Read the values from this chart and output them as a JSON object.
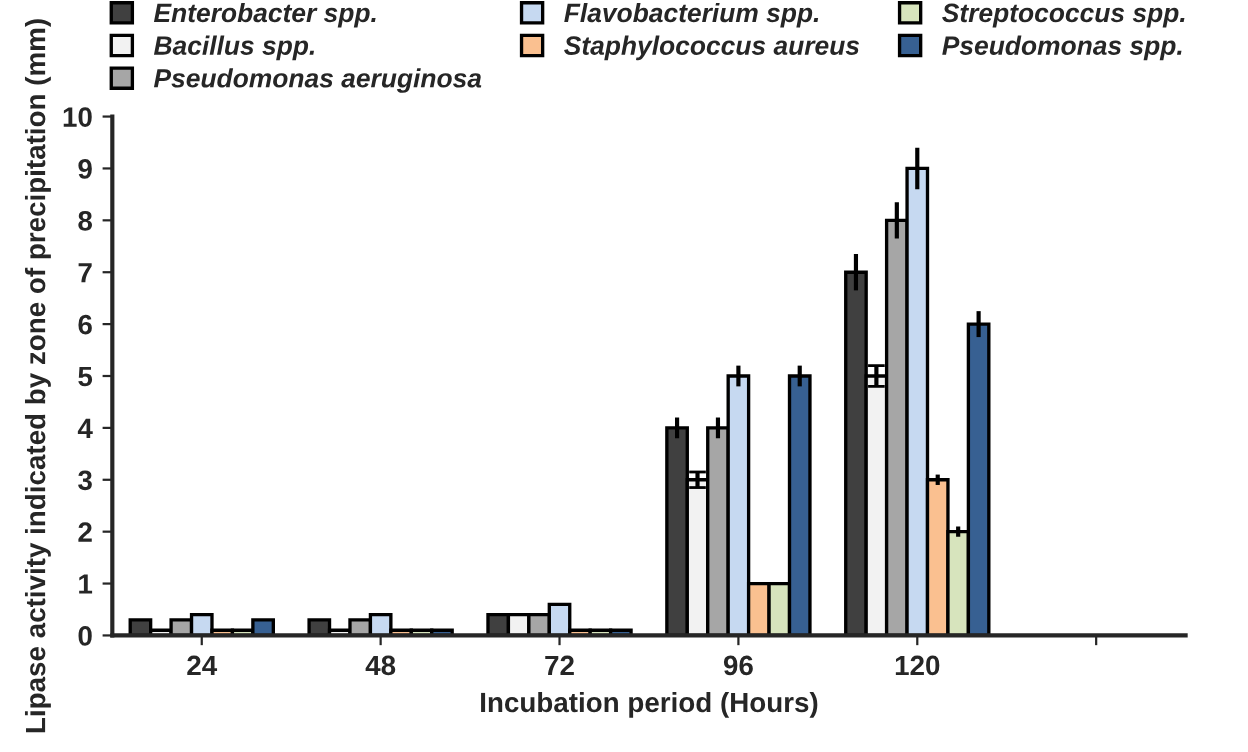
{
  "chart_data": {
    "type": "bar",
    "xlabel": "Incubation period (Hours)",
    "ylabel": "Lipase activity indicated by zone of precipitation (mm)",
    "categories": [
      "24",
      "48",
      "72",
      "96",
      "120",
      null
    ],
    "series": [
      {
        "name": "Enterobacter spp.",
        "color": "#404040",
        "values": [
          0.3,
          0.3,
          0.4,
          4,
          7,
          null
        ],
        "errors": [
          null,
          null,
          null,
          0.2,
          0.35,
          null
        ]
      },
      {
        "name": "Bacillus spp.",
        "color": "#f2f2f2",
        "values": [
          0.1,
          0.1,
          0.4,
          3,
          5,
          null
        ],
        "errors": [
          null,
          null,
          null,
          0.15,
          0.2,
          null
        ]
      },
      {
        "name": "Pseudomonas aeruginosa",
        "color": "#a6a6a6",
        "values": [
          0.3,
          0.3,
          0.4,
          4,
          8,
          null
        ],
        "errors": [
          null,
          null,
          null,
          0.2,
          0.35,
          null
        ]
      },
      {
        "name": "Flavobacterium spp.",
        "color": "#c6d9f1",
        "values": [
          0.4,
          0.4,
          0.6,
          5,
          9,
          null
        ],
        "errors": [
          null,
          null,
          null,
          0.2,
          0.4,
          null
        ]
      },
      {
        "name": "Staphylococcus aureus",
        "color": "#fac090",
        "values": [
          0.1,
          0.1,
          0.1,
          1,
          3,
          null
        ],
        "errors": [
          null,
          null,
          null,
          null,
          0.1,
          null
        ]
      },
      {
        "name": "Streptococcus spp.",
        "color": "#d7e4bd",
        "values": [
          0.1,
          0.1,
          0.1,
          1,
          2,
          null
        ],
        "errors": [
          null,
          null,
          null,
          null,
          0.1,
          null
        ]
      },
      {
        "name": "Pseudomonas spp.",
        "color": "#376092",
        "values": [
          0.3,
          0.1,
          0.1,
          5,
          6,
          null
        ],
        "errors": [
          null,
          null,
          null,
          0.2,
          0.25,
          null
        ]
      }
    ],
    "ylim": [
      0,
      10
    ],
    "yticks": [
      0,
      1,
      2,
      3,
      4,
      5,
      6,
      7,
      8,
      9,
      10
    ],
    "legend": "top",
    "grid": false
  }
}
